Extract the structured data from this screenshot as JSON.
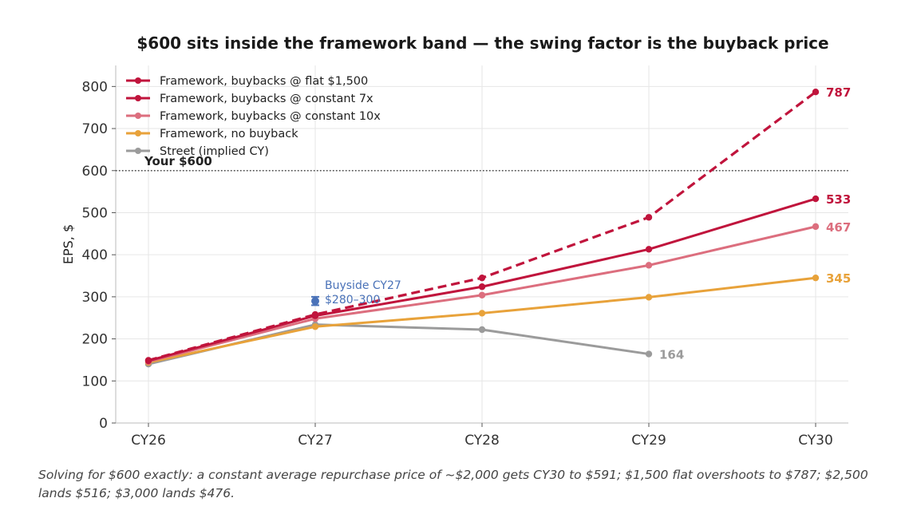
{
  "chart_data": {
    "type": "line",
    "title": "$600 sits inside the framework band — the swing factor is the buyback price",
    "ylabel": "EPS, $",
    "xlabel": "",
    "categories": [
      "CY26",
      "CY27",
      "CY28",
      "CY29",
      "CY30"
    ],
    "ylim": [
      0,
      850
    ],
    "yticks": [
      0,
      100,
      200,
      300,
      400,
      500,
      600,
      700,
      800
    ],
    "grid": true,
    "legend_position": "top-left",
    "series": [
      {
        "name": "Framework, buybacks @ flat $1,500",
        "color": "#c0143c",
        "dashed": true,
        "values": [
          149,
          258,
          345,
          489,
          787
        ],
        "end_label": "787"
      },
      {
        "name": "Framework, buybacks @ constant 7x",
        "color": "#c0143c",
        "dashed": false,
        "values": [
          148,
          255,
          324,
          413,
          533
        ],
        "end_label": "533"
      },
      {
        "name": "Framework, buybacks @ constant 10x",
        "color": "#dc6e7e",
        "dashed": false,
        "values": [
          146,
          248,
          304,
          375,
          467
        ],
        "end_label": "467"
      },
      {
        "name": "Framework, no buyback",
        "color": "#e8a23a",
        "dashed": false,
        "values": [
          144,
          229,
          261,
          299,
          345
        ],
        "end_label": "345"
      },
      {
        "name": "Street (implied CY)",
        "color": "#9b9b9b",
        "dashed": false,
        "values": [
          140,
          234,
          222,
          164,
          null
        ],
        "end_label": "164"
      }
    ],
    "reference_line": {
      "y": 600,
      "label": "Your $600"
    },
    "annotation": {
      "x": "CY27",
      "y": 290,
      "low": 280,
      "high": 300,
      "label_line1": "Buyside CY27",
      "label_line2": "$280–300",
      "color": "#4a72b8"
    }
  },
  "footnote": "Solving for $600 exactly: a constant average repurchase price of ~$2,000 gets CY30 to $591; $1,500 flat overshoots to $787; $2,500 lands $516; $3,000 lands $476."
}
